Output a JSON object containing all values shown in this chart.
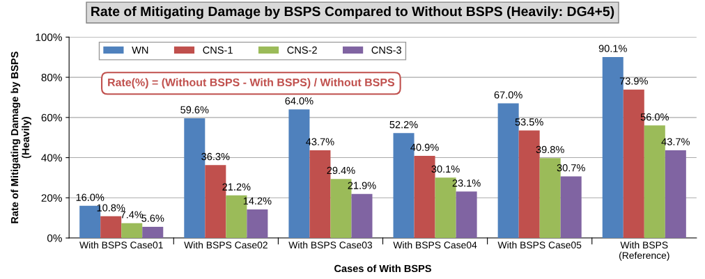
{
  "chart_data": {
    "type": "bar",
    "title": "Rate of Mitigating Damage by BSPS Compared to Without BSPS (Heavily: DG4+5)",
    "xlabel": "Cases of With BSPS",
    "ylabel": "Rate of Mitigating Damage by BSPS\n(Heavily)",
    "categories": [
      "With BSPS Case01",
      "With BSPS Case02",
      "With BSPS Case03",
      "With BSPS Case04",
      "With BSPS Case05",
      "With BSPS\n(Reference)"
    ],
    "series": [
      {
        "name": "WN",
        "color": "#4f81bd",
        "values": [
          16.0,
          59.6,
          64.0,
          52.2,
          67.0,
          90.1
        ],
        "value_labels": [
          "16.0%",
          "59.6%",
          "64.0%",
          "52.2%",
          "67.0%",
          "90.1%"
        ]
      },
      {
        "name": "CNS-1",
        "color": "#c0504d",
        "values": [
          10.8,
          36.3,
          43.7,
          40.9,
          53.5,
          73.9
        ],
        "value_labels": [
          "10.8%",
          "36.3%",
          "43.7%",
          "40.9%",
          "53.5%",
          "73.9%"
        ]
      },
      {
        "name": "CNS-2",
        "color": "#9bbb59",
        "values": [
          7.4,
          21.2,
          29.4,
          30.1,
          39.8,
          56.0
        ],
        "value_labels": [
          "7.4%",
          "21.2%",
          "29.4%",
          "30.1%",
          "39.8%",
          "56.0%"
        ]
      },
      {
        "name": "CNS-3",
        "color": "#8064a2",
        "values": [
          5.6,
          14.2,
          21.9,
          23.1,
          30.7,
          43.7
        ],
        "value_labels": [
          "5.6%",
          "14.2%",
          "21.9%",
          "23.1%",
          "30.7%",
          "43.7%"
        ]
      }
    ],
    "ylim": [
      0,
      100
    ],
    "yticks": [
      {
        "value": 0,
        "label": "0%"
      },
      {
        "value": 20,
        "label": "20%"
      },
      {
        "value": 40,
        "label": "40%"
      },
      {
        "value": 60,
        "label": "60%"
      },
      {
        "value": 80,
        "label": "80%"
      },
      {
        "value": 100,
        "label": "100%"
      }
    ],
    "grid": "y",
    "legend": "top left",
    "annotations": [
      "Rate(%) = (Without BSPS - With BSPS) / Without BSPS"
    ]
  }
}
